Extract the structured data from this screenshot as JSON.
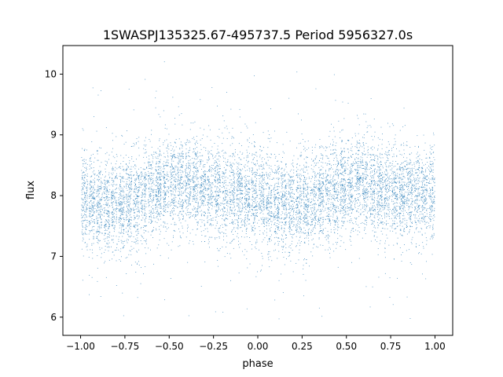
{
  "chart_data": {
    "type": "scatter",
    "title": "1SWASPJ135325.67-495737.5 Period 5956327.0s",
    "xlabel": "phase",
    "ylabel": "flux",
    "xlim": [
      -1.1,
      1.1
    ],
    "ylim": [
      5.7,
      10.47
    ],
    "xticks": [
      -1.0,
      -0.75,
      -0.5,
      -0.25,
      0.0,
      0.25,
      0.5,
      0.75,
      1.0
    ],
    "xtick_labels": [
      "−1.00",
      "−0.75",
      "−0.50",
      "−0.25",
      "0.00",
      "0.25",
      "0.50",
      "0.75",
      "1.00"
    ],
    "yticks": [
      6,
      7,
      8,
      9,
      10
    ],
    "ytick_labels": [
      "6",
      "7",
      "8",
      "9",
      "10"
    ],
    "grid": false,
    "point_color": "#1f77b4",
    "point_count": 9000,
    "phase_range": [
      -1.0,
      1.0
    ],
    "flux_baseline": 8.0,
    "flux_scatter": 0.4,
    "flux_envelope": [
      {
        "phase": -1.0,
        "mean": 8.0
      },
      {
        "phase": -0.9,
        "mean": 7.85
      },
      {
        "phase": -0.75,
        "mean": 7.85
      },
      {
        "phase": -0.6,
        "mean": 8.05
      },
      {
        "phase": -0.45,
        "mean": 8.25
      },
      {
        "phase": -0.3,
        "mean": 8.1
      },
      {
        "phase": -0.15,
        "mean": 8.05
      },
      {
        "phase": 0.0,
        "mean": 8.0
      },
      {
        "phase": 0.1,
        "mean": 7.85
      },
      {
        "phase": 0.25,
        "mean": 7.85
      },
      {
        "phase": 0.4,
        "mean": 8.05
      },
      {
        "phase": 0.55,
        "mean": 8.25
      },
      {
        "phase": 0.7,
        "mean": 8.1
      },
      {
        "phase": 0.85,
        "mean": 8.05
      },
      {
        "phase": 1.0,
        "mean": 8.0
      }
    ]
  }
}
